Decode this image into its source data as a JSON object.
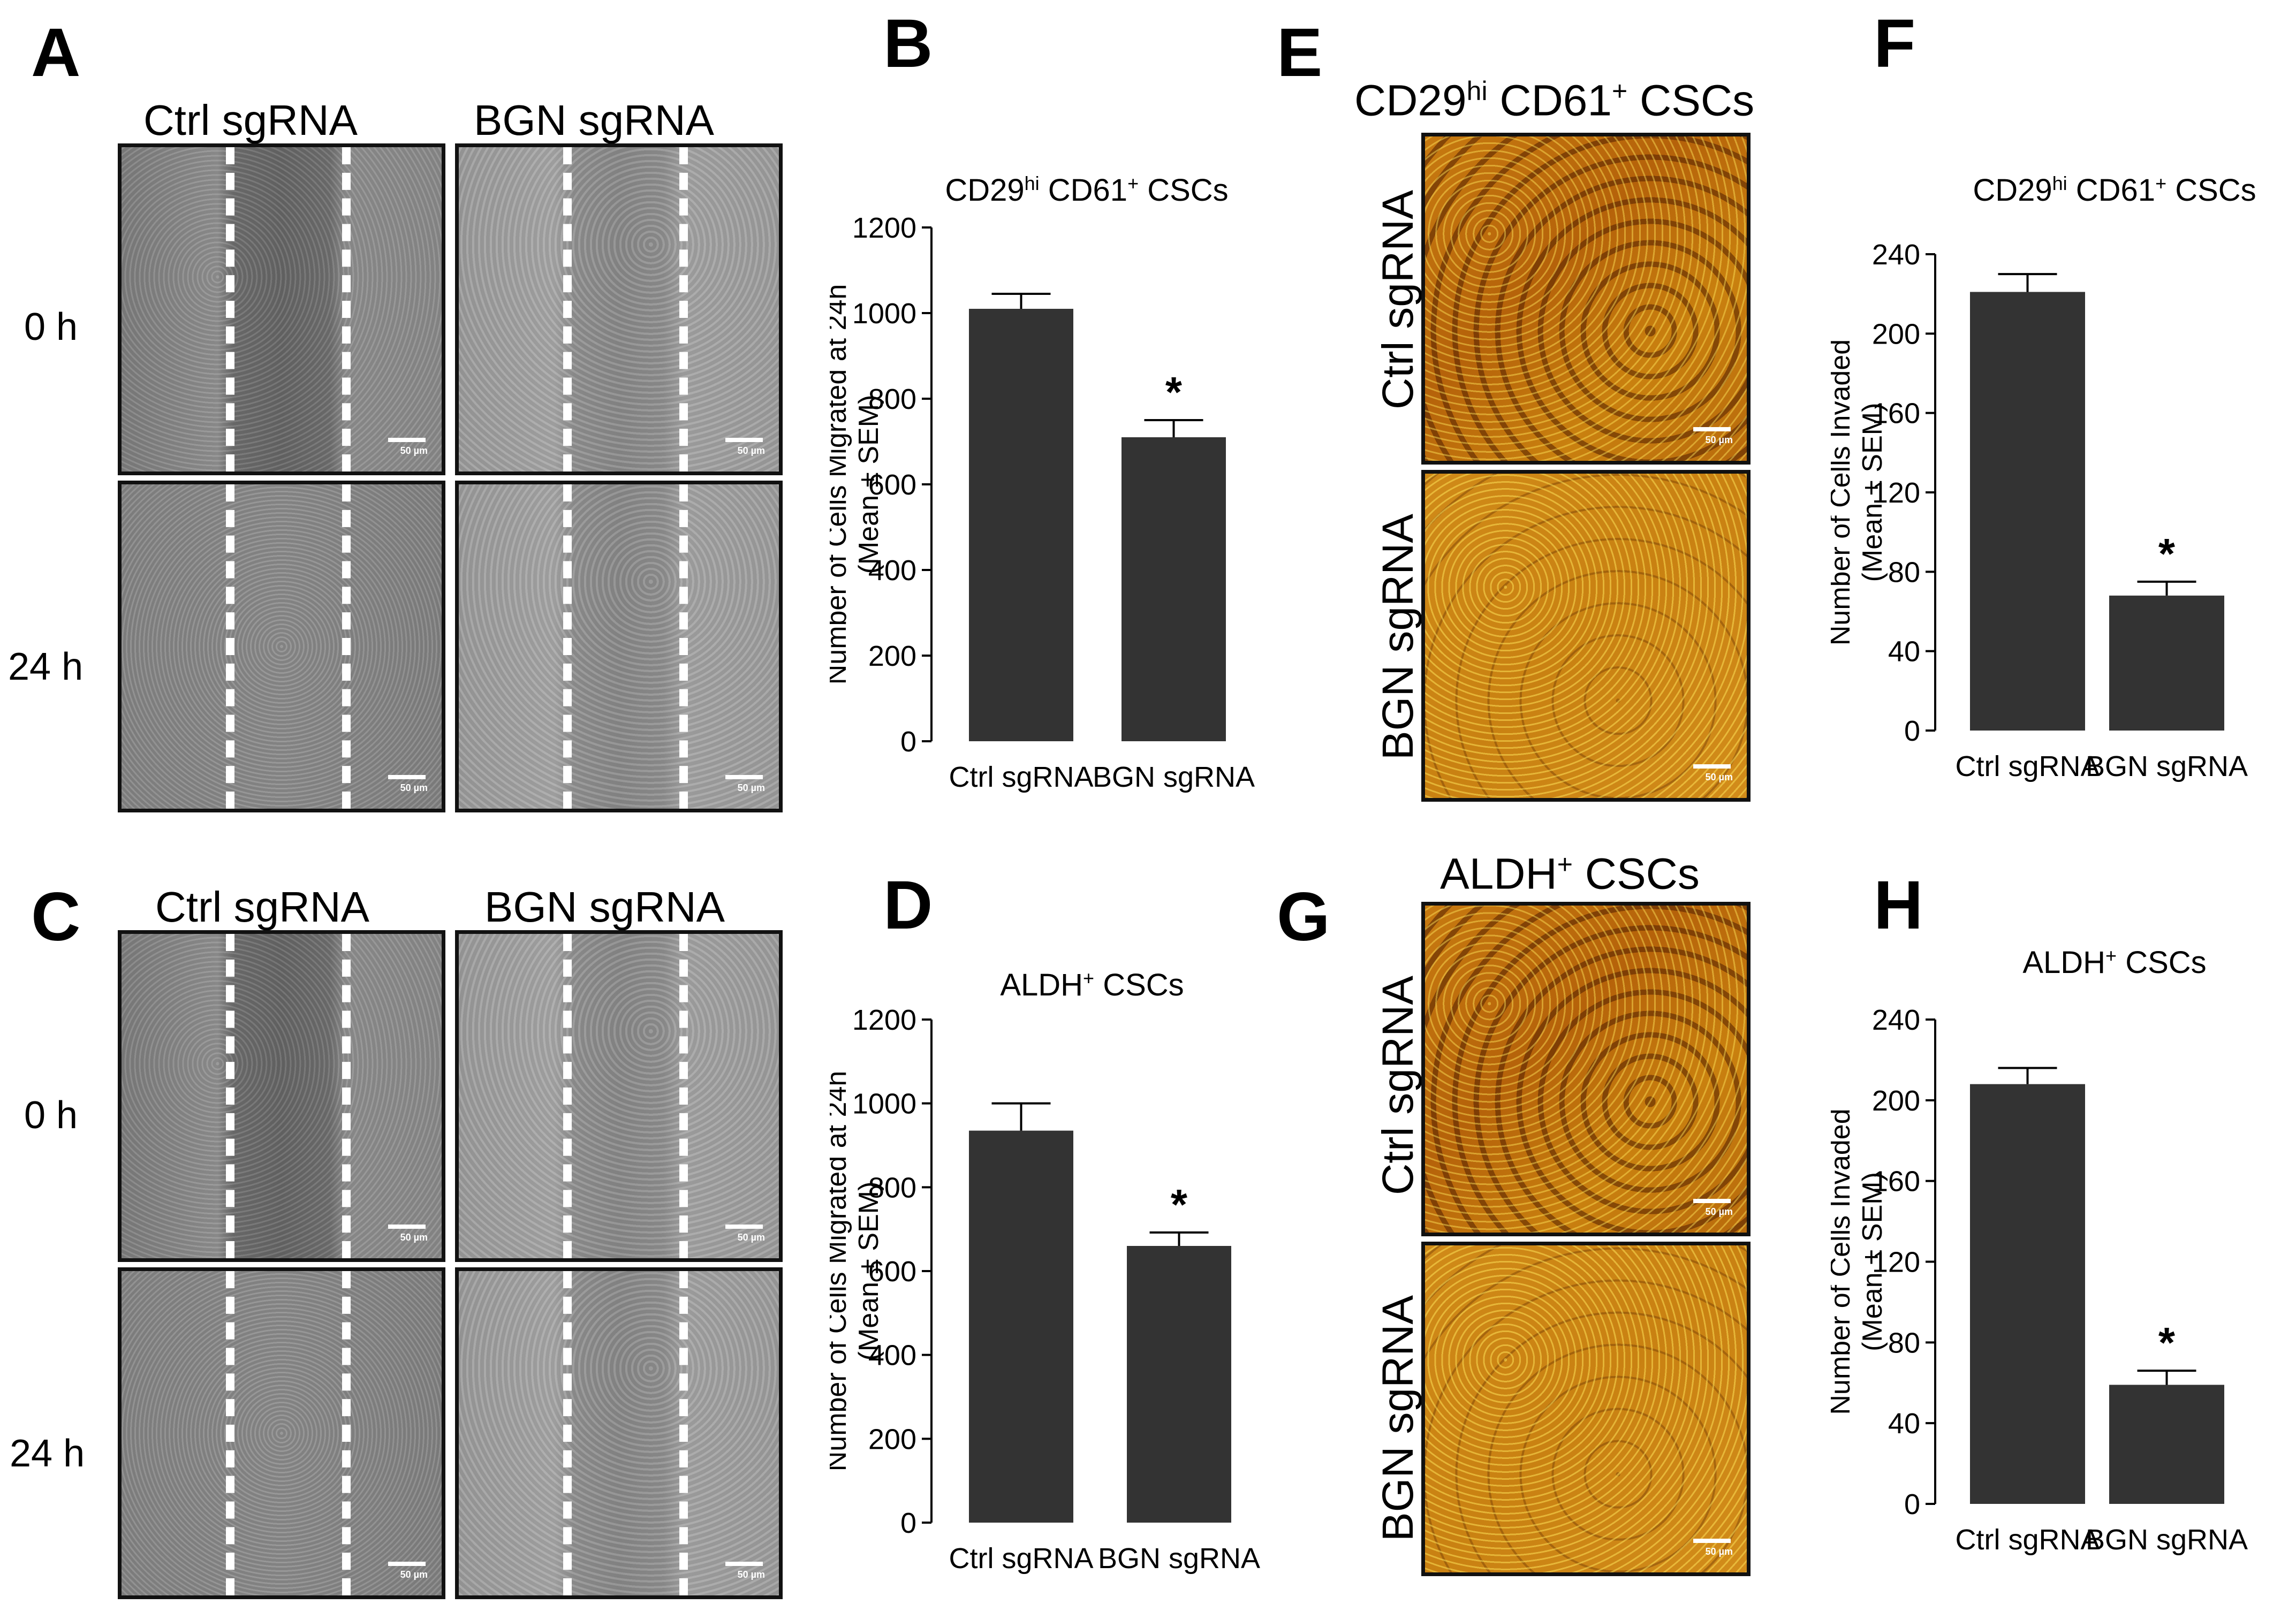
{
  "panels": {
    "A": {
      "letter": "A",
      "col1": "Ctrl sgRNA",
      "col2": "BGN sgRNA",
      "row1": "0 h",
      "row2": "24 h"
    },
    "C": {
      "letter": "C",
      "col1": "Ctrl sgRNA",
      "col2": "BGN sgRNA",
      "row1": "0 h",
      "row2": "24 h"
    },
    "E": {
      "letter": "E",
      "title_main": "CD29",
      "title_sup1": "hi",
      "title_mid": " CD61",
      "title_sup2": "+",
      "title_end": " CSCs",
      "row1": "Ctrl sgRNA",
      "row2": "BGN sgRNA"
    },
    "G": {
      "letter": "G",
      "title_main": "ALDH",
      "title_sup": "+",
      "title_end": " CSCs",
      "row1": "Ctrl sgRNA",
      "row2": "BGN sgRNA"
    }
  },
  "scale_bar_label": "50 µm",
  "colors": {
    "bar": "#333333",
    "micro_border": "#111111"
  },
  "chart_data": [
    {
      "id": "B",
      "letter": "B",
      "type": "bar",
      "title": "CD29hi CD61+ CSCs",
      "categories": [
        "Ctrl sgRNA",
        "BGN sgRNA"
      ],
      "values": [
        1010,
        710
      ],
      "errors": [
        35,
        40
      ],
      "significance": [
        "",
        "*"
      ],
      "ylabel_line1": "Number of Cells Migrated at 24h",
      "ylabel_line2": "(Mean ± SEM)",
      "ylim": [
        0,
        1200
      ],
      "yticks": [
        0,
        200,
        400,
        600,
        800,
        1000,
        1200
      ]
    },
    {
      "id": "D",
      "letter": "D",
      "type": "bar",
      "title": "ALDH+ CSCs",
      "categories": [
        "Ctrl sgRNA",
        "BGN sgRNA"
      ],
      "values": [
        935,
        660
      ],
      "errors": [
        65,
        32
      ],
      "significance": [
        "",
        "*"
      ],
      "ylabel_line1": "Number of Cells Migrated at 24h",
      "ylabel_line2": "(Mean ± SEM)",
      "ylim": [
        0,
        1200
      ],
      "yticks": [
        0,
        200,
        400,
        600,
        800,
        1000,
        1200
      ]
    },
    {
      "id": "F",
      "letter": "F",
      "type": "bar",
      "title": "CD29hi CD61+ CSCs",
      "categories": [
        "Ctrl sgRNA",
        "BGN sgRNA"
      ],
      "values": [
        221,
        68
      ],
      "errors": [
        9,
        7
      ],
      "significance": [
        "",
        "*"
      ],
      "ylabel_line1": "Number of Cells Invaded",
      "ylabel_line2": "(Mean ± SEM)",
      "ylim": [
        0,
        240
      ],
      "yticks": [
        0,
        40,
        80,
        120,
        160,
        200,
        240
      ]
    },
    {
      "id": "H",
      "letter": "H",
      "type": "bar",
      "title": "ALDH+ CSCs",
      "categories": [
        "Ctrl sgRNA",
        "BGN sgRNA"
      ],
      "values": [
        208,
        59
      ],
      "errors": [
        8,
        7
      ],
      "significance": [
        "",
        "*"
      ],
      "ylabel_line1": "Number of Cells Invaded",
      "ylabel_line2": "(Mean ± SEM)",
      "ylim": [
        0,
        240
      ],
      "yticks": [
        0,
        40,
        80,
        120,
        160,
        200,
        240
      ]
    }
  ]
}
